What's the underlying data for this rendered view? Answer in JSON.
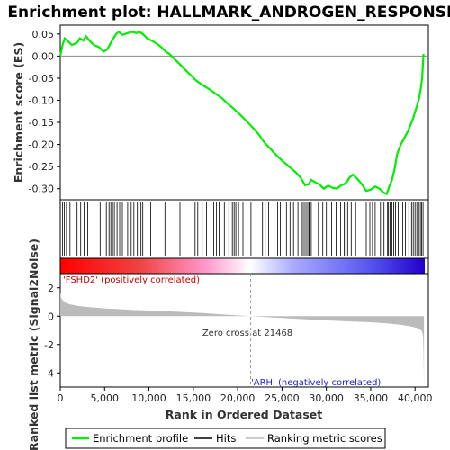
{
  "title": "Enrichment plot: HALLMARK_ANDROGEN_RESPONSE",
  "colors": {
    "es_line": "#00ee00",
    "hits": "#000000",
    "metric_fill": "#bbbbbb",
    "positive_label": "#cc0000",
    "negative_label": "#2222cc"
  },
  "chart_data": [
    {
      "type": "line",
      "panel": "enrichment-score",
      "ylabel": "Enrichment score (ES)",
      "ylim": [
        -0.325,
        0.07
      ],
      "xlim": [
        0,
        41500
      ],
      "y_ticks": [
        0.05,
        0.0,
        -0.05,
        -0.1,
        -0.15,
        -0.2,
        -0.25,
        -0.3
      ],
      "y_tick_labels": [
        "0.05",
        "0.00",
        "-0.05",
        "-0.10",
        "-0.15",
        "-0.20",
        "-0.25",
        "-0.30"
      ],
      "grid": false,
      "series": [
        {
          "name": "Enrichment profile",
          "x": [
            0,
            250,
            500,
            800,
            1300,
            1900,
            2200,
            2600,
            2900,
            3300,
            3800,
            4400,
            4900,
            5300,
            5700,
            6000,
            6300,
            6600,
            7000,
            7300,
            7600,
            8100,
            8600,
            8900,
            9300,
            9800,
            10300,
            10900,
            11400,
            11900,
            12300,
            12800,
            13300,
            13800,
            14300,
            14800,
            15300,
            16000,
            16800,
            17500,
            18200,
            18900,
            19600,
            20300,
            21000,
            21700,
            22400,
            23000,
            23700,
            24400,
            25100,
            25800,
            26500,
            27100,
            27600,
            28000,
            28300,
            28700,
            29200,
            29700,
            30200,
            30700,
            31200,
            31600,
            32000,
            32300,
            32600,
            33000,
            33500,
            34000,
            34500,
            35000,
            35500,
            36000,
            36400,
            36800,
            37100,
            37400,
            37700,
            38000,
            38400,
            38800,
            39200,
            39500,
            39800,
            40100,
            40400,
            40600,
            40800,
            40950
          ],
          "y": [
            0.0,
            0.025,
            0.04,
            0.035,
            0.025,
            0.03,
            0.04,
            0.035,
            0.045,
            0.035,
            0.025,
            0.02,
            0.01,
            0.015,
            0.03,
            0.04,
            0.05,
            0.055,
            0.048,
            0.05,
            0.052,
            0.055,
            0.052,
            0.055,
            0.05,
            0.04,
            0.035,
            0.028,
            0.02,
            0.01,
            0.005,
            -0.005,
            -0.015,
            -0.025,
            -0.035,
            -0.045,
            -0.055,
            -0.065,
            -0.075,
            -0.085,
            -0.095,
            -0.108,
            -0.12,
            -0.133,
            -0.147,
            -0.162,
            -0.178,
            -0.195,
            -0.21,
            -0.225,
            -0.238,
            -0.25,
            -0.262,
            -0.275,
            -0.292,
            -0.29,
            -0.28,
            -0.285,
            -0.29,
            -0.3,
            -0.293,
            -0.298,
            -0.3,
            -0.293,
            -0.29,
            -0.285,
            -0.275,
            -0.268,
            -0.278,
            -0.29,
            -0.305,
            -0.302,
            -0.295,
            -0.3,
            -0.308,
            -0.312,
            -0.295,
            -0.28,
            -0.255,
            -0.22,
            -0.2,
            -0.185,
            -0.17,
            -0.155,
            -0.14,
            -0.12,
            -0.1,
            -0.08,
            -0.05,
            0.005
          ]
        }
      ]
    },
    {
      "type": "scatter",
      "panel": "hits",
      "series": [
        {
          "name": "Hits",
          "x": [
            250,
            450,
            700,
            1100,
            1900,
            2300,
            2700,
            3100,
            4500,
            5200,
            5500,
            5700,
            5900,
            6100,
            6400,
            6700,
            7000,
            7600,
            8000,
            8300,
            8700,
            9100,
            9300,
            10200,
            11800,
            13500,
            15200,
            15500,
            16000,
            16500,
            17000,
            17300,
            17600,
            17900,
            18500,
            19000,
            19400,
            19600,
            19800,
            20100,
            20600,
            21500,
            22800,
            23100,
            23500,
            24100,
            24500,
            24800,
            25100,
            25500,
            25900,
            26300,
            26800,
            27200,
            27400,
            27600,
            27800,
            28000,
            28100,
            28300,
            29100,
            29600,
            30000,
            30600,
            31100,
            31600,
            32000,
            32200,
            32400,
            32800,
            33300,
            34500,
            34900,
            35200,
            35500,
            36100,
            36500,
            36900,
            37000,
            37200,
            37400,
            37600,
            37800,
            38100,
            38600,
            38900,
            39300,
            39600,
            39800,
            40000,
            40200,
            40400,
            40600,
            40750,
            40900
          ]
        }
      ]
    },
    {
      "type": "area",
      "panel": "ranked-metric",
      "title": "",
      "xlabel": "Rank in Ordered Dataset",
      "ylabel": "Ranked list metric (Signal2Noise)",
      "xlim": [
        0,
        41500
      ],
      "ylim": [
        -5,
        3
      ],
      "x_ticks": [
        0,
        5000,
        10000,
        15000,
        20000,
        25000,
        30000,
        35000,
        40000
      ],
      "x_tick_labels": [
        "0",
        "5,000",
        "10,000",
        "15,000",
        "20,000",
        "25,000",
        "30,000",
        "35,000",
        "40,000"
      ],
      "y_ticks": [
        2,
        0,
        -2,
        -4
      ],
      "y_tick_labels": [
        "2",
        "0",
        "-2",
        "-4"
      ],
      "zero_cross": 21468,
      "series": [
        {
          "name": "Ranking metric scores",
          "x": [
            0,
            100,
            300,
            600,
            1000,
            2000,
            3000,
            5000,
            8000,
            12000,
            16000,
            19000,
            21468,
            24000,
            27000,
            30000,
            33000,
            35000,
            37000,
            38500,
            39500,
            40200,
            40600,
            40800,
            40900,
            40950,
            41000
          ],
          "y": [
            1.7,
            1.3,
            1.1,
            0.95,
            0.85,
            0.72,
            0.65,
            0.55,
            0.45,
            0.35,
            0.22,
            0.1,
            0.0,
            -0.1,
            -0.2,
            -0.3,
            -0.38,
            -0.43,
            -0.52,
            -0.62,
            -0.72,
            -0.82,
            -0.95,
            -1.1,
            -1.4,
            -2.5,
            -4.9
          ]
        }
      ]
    }
  ],
  "annotations": {
    "zero_cross_label": "Zero cross at 21468",
    "positive_label": "'FSHD2' (positively correlated)",
    "negative_label": "'ARH' (negatively correlated)"
  },
  "legend": {
    "items": [
      {
        "label": "Enrichment profile",
        "icon": "green-line-icon"
      },
      {
        "label": "Hits",
        "icon": "black-line-icon"
      },
      {
        "label": "Ranking metric scores",
        "icon": "gray-line-icon"
      }
    ]
  }
}
